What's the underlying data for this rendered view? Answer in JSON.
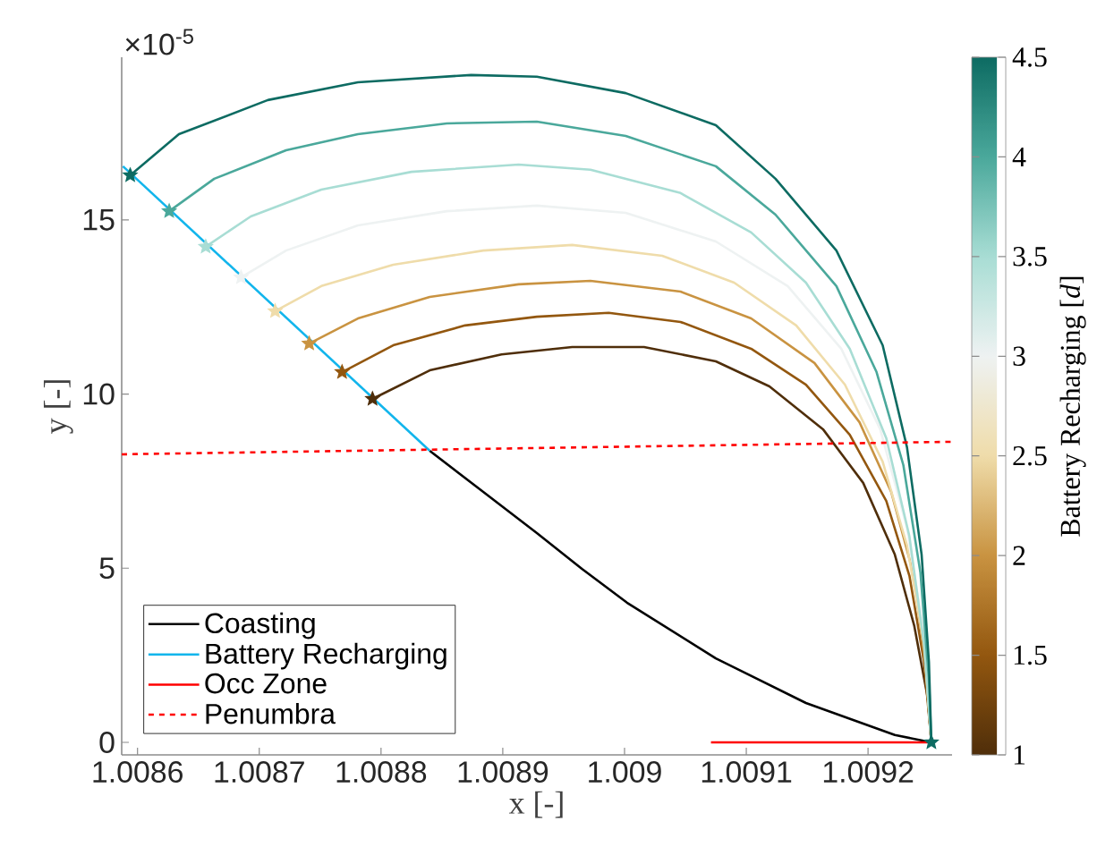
{
  "chart_data": {
    "type": "line",
    "xlabel": "x [-]",
    "ylabel": "y [-]",
    "clabel": "Battery Recharging [*d*]",
    "annotations": [
      "×10$^{-5}$"
    ],
    "xlim": [
      1.008587,
      1.009269
    ],
    "ylim": [
      -0.36,
      19.67
    ],
    "xticks": [
      1.0086,
      1.0087,
      1.0088,
      1.0089,
      1.009,
      1.0091,
      1.0092
    ],
    "yticks": [
      0,
      5,
      10,
      15
    ],
    "clim": [
      1,
      4.5
    ],
    "cticks": [
      1,
      1.5,
      2,
      2.5,
      3,
      3.5,
      4,
      4.5
    ],
    "legend": "bottom left",
    "series": [
      {
        "color": "#4f2e0a",
        "x": [
          1.008793,
          1.00884,
          1.008899,
          1.008957,
          1.009016,
          1.009075,
          1.009119,
          1.009163,
          1.009196,
          1.009222,
          1.009238,
          1.009249,
          1.009252
        ],
        "values": [
          9.86,
          10.68,
          11.14,
          11.35,
          11.35,
          10.94,
          10.22,
          8.99,
          7.45,
          5.39,
          3.34,
          1.28,
          0
        ]
      },
      {
        "color": "#93570f",
        "x": [
          1.008768,
          1.00881,
          1.008869,
          1.008928,
          1.008987,
          1.009046,
          1.009104,
          1.009149,
          1.009185,
          1.009215,
          1.009234,
          1.009246,
          1.009252
        ],
        "values": [
          10.63,
          11.4,
          11.97,
          12.22,
          12.33,
          12.07,
          11.3,
          10.27,
          8.83,
          6.93,
          4.78,
          2.31,
          0
        ]
      },
      {
        "color": "#c99341",
        "x": [
          1.008741,
          1.008781,
          1.00884,
          1.008913,
          1.008972,
          1.009046,
          1.009104,
          1.009156,
          1.009193,
          1.009219,
          1.009237,
          1.009247,
          1.009252
        ],
        "values": [
          11.45,
          12.17,
          12.79,
          13.15,
          13.25,
          12.94,
          12.17,
          10.89,
          9.19,
          7.19,
          4.88,
          2.31,
          0
        ]
      },
      {
        "color": "#efdcaa",
        "x": [
          1.008713,
          1.008751,
          1.00881,
          1.008884,
          1.008957,
          1.009031,
          1.00909,
          1.009141,
          1.009181,
          1.009212,
          1.009232,
          1.009246,
          1.009252
        ],
        "values": [
          12.38,
          13.1,
          13.71,
          14.12,
          14.28,
          13.97,
          13.2,
          11.97,
          10.27,
          8.06,
          5.65,
          2.82,
          0
        ]
      },
      {
        "color": "#eef2f2",
        "x": [
          1.008685,
          1.008722,
          1.008781,
          1.008854,
          1.008928,
          1.009001,
          1.009075,
          1.009134,
          1.009178,
          1.00921,
          1.009232,
          1.009246,
          1.009252
        ],
        "values": [
          13.35,
          14.12,
          14.84,
          15.25,
          15.41,
          15.2,
          14.38,
          13.1,
          11.3,
          8.99,
          6.16,
          3.08,
          0
        ]
      },
      {
        "color": "#a8ddd4",
        "x": [
          1.008656,
          1.008693,
          1.008751,
          1.008825,
          1.008913,
          1.008972,
          1.009046,
          1.009104,
          1.009149,
          1.009185,
          1.009215,
          1.009234,
          1.009246,
          1.009252
        ],
        "values": [
          14.23,
          15.1,
          15.87,
          16.38,
          16.59,
          16.44,
          15.77,
          14.64,
          13.2,
          11.3,
          8.73,
          5.91,
          2.82,
          0
        ]
      },
      {
        "color": "#4aa89b",
        "x": [
          1.008626,
          1.008663,
          1.008722,
          1.008781,
          1.008854,
          1.008928,
          1.009001,
          1.009075,
          1.009124,
          1.009174,
          1.009207,
          1.009229,
          1.009243,
          1.00925,
          1.009252
        ],
        "values": [
          15.25,
          16.18,
          17.0,
          17.46,
          17.77,
          17.82,
          17.41,
          16.54,
          15.15,
          13.1,
          10.63,
          7.96,
          4.88,
          1.8,
          0
        ]
      },
      {
        "color": "#0d6b62",
        "x": [
          1.008594,
          1.008634,
          1.008707,
          1.008781,
          1.008874,
          1.008928,
          1.009001,
          1.009075,
          1.009124,
          1.009174,
          1.009212,
          1.009232,
          1.009244,
          1.00925,
          1.009252
        ],
        "values": [
          16.28,
          17.46,
          18.44,
          18.95,
          19.16,
          19.11,
          18.64,
          17.72,
          16.18,
          14.12,
          11.4,
          8.47,
          5.39,
          2.31,
          0
        ]
      },
      {
        "name": "Coasting",
        "color": "#000000",
        "x": [
          1.00884,
          1.008884,
          1.008928,
          1.008965,
          1.009002,
          1.009075,
          1.009149,
          1.009222,
          1.009252
        ],
        "values": [
          8.37,
          7.19,
          6.01,
          4.98,
          4.01,
          2.41,
          1.13,
          0.21,
          0
        ]
      },
      {
        "name": "Battery Recharging",
        "color": "#12b5ec",
        "x": [
          1.008588,
          1.00884
        ],
        "values": [
          16.54,
          8.37
        ]
      },
      {
        "name": "Occ Zone",
        "color": "#ff0000",
        "x": [
          1.009071,
          1.009252
        ],
        "values": [
          0,
          0
        ]
      },
      {
        "name": "Penumbra",
        "color": "#ff0000",
        "line_style": "dashed",
        "x": [
          1.008587,
          1.009269
        ],
        "values": [
          8.27,
          8.63
        ]
      },
      {
        "type": "scatter",
        "marker": "star",
        "colors": [
          "#4f2e0a",
          "#93570f",
          "#c99341",
          "#efdcaa",
          "#eef2f2",
          "#a8ddd4",
          "#4aa89b",
          "#0d6b62",
          "#0d6b62"
        ],
        "x": [
          1.008793,
          1.008768,
          1.008741,
          1.008713,
          1.008685,
          1.008656,
          1.008626,
          1.008594,
          1.009252
        ],
        "values": [
          9.86,
          10.63,
          11.45,
          12.38,
          13.35,
          14.23,
          15.25,
          16.28,
          0
        ]
      }
    ]
  }
}
